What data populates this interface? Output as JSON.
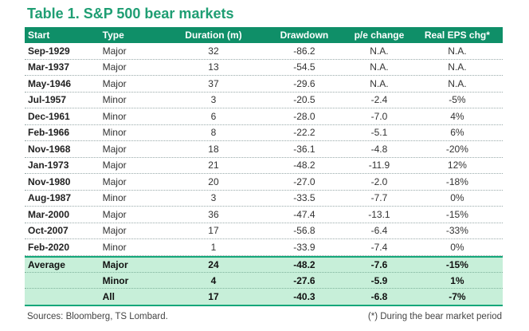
{
  "title": "Table 1. S&P 500 bear markets",
  "columns": [
    "Start",
    "Type",
    "Duration (m)",
    "Drawdown",
    "p/e change",
    "Real EPS chg*"
  ],
  "rows": [
    [
      "Sep-1929",
      "Major",
      "32",
      "-86.2",
      "N.A.",
      "N.A."
    ],
    [
      "Mar-1937",
      "Major",
      "13",
      "-54.5",
      "N.A.",
      "N.A."
    ],
    [
      "May-1946",
      "Major",
      "37",
      "-29.6",
      "N.A.",
      "N.A."
    ],
    [
      "Jul-1957",
      "Minor",
      "3",
      "-20.5",
      "-2.4",
      "-5%"
    ],
    [
      "Dec-1961",
      "Minor",
      "6",
      "-28.0",
      "-7.0",
      "4%"
    ],
    [
      "Feb-1966",
      "Minor",
      "8",
      "-22.2",
      "-5.1",
      "6%"
    ],
    [
      "Nov-1968",
      "Major",
      "18",
      "-36.1",
      "-4.8",
      "-20%"
    ],
    [
      "Jan-1973",
      "Major",
      "21",
      "-48.2",
      "-11.9",
      "12%"
    ],
    [
      "Nov-1980",
      "Major",
      "20",
      "-27.0",
      "-2.0",
      "-18%"
    ],
    [
      "Aug-1987",
      "Minor",
      "3",
      "-33.5",
      "-7.7",
      "0%"
    ],
    [
      "Mar-2000",
      "Major",
      "36",
      "-47.4",
      "-13.1",
      "-15%"
    ],
    [
      "Oct-2007",
      "Major",
      "17",
      "-56.8",
      "-6.4",
      "-33%"
    ],
    [
      "Feb-2020",
      "Minor",
      "1",
      "-33.9",
      "-7.4",
      "0%"
    ]
  ],
  "summary": [
    [
      "Average",
      "Major",
      "24",
      "-48.2",
      "-7.6",
      "-15%"
    ],
    [
      "",
      "Minor",
      "4",
      "-27.6",
      "-5.9",
      "1%"
    ],
    [
      "",
      "All",
      "17",
      "-40.3",
      "-6.8",
      "-7%"
    ]
  ],
  "sources": "Sources: Bloomberg, TS Lombard.",
  "note": "(*) During the bear market period",
  "colors": {
    "accent": "#1f9e73",
    "header_bg": "#0f8f68",
    "summary_bg": "#c7efd9"
  }
}
